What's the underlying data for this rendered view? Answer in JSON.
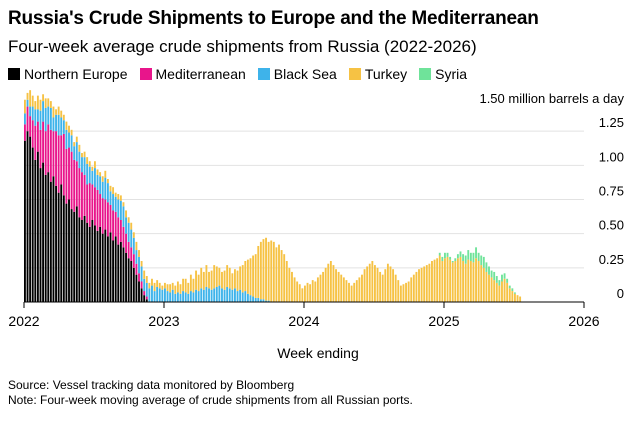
{
  "title": "Russia's Crude Shipments to Europe and the Mediterranean",
  "subtitle": "Four-week average crude shipments from Russia (2022-2026)",
  "source": "Source: Vessel tracking data monitored by Bloomberg",
  "note": "Note: Four-week moving average of crude shipments from all Russian ports.",
  "colors": {
    "Northern Europe": "#000000",
    "Mediterranean": "#e8158b",
    "Black Sea": "#3eb3ea",
    "Turkey": "#f6c244",
    "Syria": "#6fe39a"
  },
  "chart_data": {
    "type": "bar",
    "stacked": true,
    "xlabel": "Week ending",
    "ylabel": "",
    "y_unit_label": "1.50 million barrels a day",
    "ylim": [
      0,
      1.5
    ],
    "yticks": [
      "0",
      "0.25",
      "0.50",
      "0.75",
      "1.00",
      "1.25"
    ],
    "xticks": [
      "2022",
      "2023",
      "2024",
      "2025",
      "2026"
    ],
    "x_start": 2022.0,
    "x_end": 2026.0,
    "categories_note": "weekly periods starting 2022-01, 208 weeks",
    "series": [
      {
        "name": "Northern Europe",
        "values": [
          1.18,
          1.25,
          1.21,
          1.13,
          1.04,
          1.1,
          0.98,
          1.02,
          0.93,
          0.95,
          0.88,
          0.92,
          0.85,
          0.8,
          0.86,
          0.78,
          0.72,
          0.75,
          0.68,
          0.66,
          0.7,
          0.62,
          0.6,
          0.63,
          0.58,
          0.55,
          0.6,
          0.56,
          0.52,
          0.55,
          0.5,
          0.53,
          0.48,
          0.51,
          0.45,
          0.48,
          0.42,
          0.44,
          0.4,
          0.36,
          0.32,
          0.3,
          0.25,
          0.2,
          0.15,
          0.1,
          0.05,
          0.02,
          0,
          0,
          0,
          0,
          0,
          0,
          0,
          0,
          0,
          0,
          0,
          0,
          0,
          0,
          0,
          0,
          0,
          0,
          0,
          0,
          0,
          0,
          0,
          0,
          0,
          0,
          0,
          0,
          0,
          0,
          0,
          0,
          0,
          0,
          0,
          0,
          0,
          0,
          0,
          0,
          0,
          0,
          0,
          0,
          0,
          0,
          0,
          0,
          0,
          0,
          0,
          0,
          0,
          0,
          0,
          0,
          0,
          0,
          0,
          0,
          0,
          0,
          0,
          0,
          0,
          0,
          0,
          0,
          0,
          0,
          0,
          0,
          0,
          0,
          0,
          0,
          0,
          0,
          0,
          0,
          0,
          0,
          0,
          0,
          0,
          0,
          0,
          0,
          0,
          0,
          0,
          0,
          0,
          0,
          0,
          0,
          0,
          0,
          0,
          0,
          0,
          0,
          0,
          0,
          0,
          0,
          0,
          0,
          0,
          0,
          0,
          0,
          0,
          0,
          0,
          0,
          0,
          0,
          0,
          0,
          0,
          0,
          0,
          0,
          0,
          0,
          0,
          0,
          0,
          0,
          0,
          0,
          0,
          0,
          0,
          0,
          0,
          0,
          0,
          0,
          0,
          0,
          0,
          0,
          0,
          0,
          0,
          0,
          0,
          0,
          0,
          0,
          0,
          0,
          0,
          0,
          0,
          0,
          0,
          0,
          0,
          0,
          0,
          0,
          0,
          0,
          0,
          0
        ]
      },
      {
        "name": "Mediterranean",
        "values": [
          0.12,
          0.18,
          0.15,
          0.2,
          0.25,
          0.22,
          0.28,
          0.3,
          0.32,
          0.35,
          0.38,
          0.33,
          0.4,
          0.42,
          0.36,
          0.45,
          0.4,
          0.38,
          0.42,
          0.38,
          0.33,
          0.36,
          0.35,
          0.3,
          0.28,
          0.32,
          0.26,
          0.28,
          0.3,
          0.24,
          0.26,
          0.22,
          0.25,
          0.2,
          0.22,
          0.18,
          0.2,
          0.16,
          0.15,
          0.14,
          0.12,
          0.1,
          0.1,
          0.08,
          0.06,
          0.05,
          0.03,
          0.02,
          0,
          0,
          0,
          0,
          0,
          0,
          0,
          0,
          0,
          0,
          0,
          0,
          0,
          0,
          0,
          0,
          0,
          0,
          0,
          0,
          0,
          0,
          0,
          0,
          0,
          0,
          0,
          0,
          0,
          0,
          0,
          0,
          0,
          0,
          0,
          0,
          0,
          0,
          0,
          0,
          0,
          0,
          0,
          0,
          0,
          0,
          0,
          0,
          0,
          0,
          0,
          0,
          0,
          0,
          0,
          0,
          0,
          0,
          0,
          0,
          0,
          0,
          0,
          0,
          0,
          0,
          0,
          0,
          0,
          0,
          0,
          0,
          0,
          0,
          0,
          0,
          0,
          0,
          0,
          0,
          0,
          0,
          0,
          0,
          0,
          0,
          0,
          0,
          0,
          0,
          0,
          0,
          0,
          0,
          0,
          0,
          0,
          0,
          0,
          0,
          0,
          0,
          0,
          0,
          0,
          0,
          0,
          0,
          0,
          0,
          0,
          0,
          0,
          0,
          0,
          0,
          0,
          0,
          0,
          0,
          0,
          0,
          0,
          0,
          0,
          0,
          0,
          0,
          0,
          0,
          0,
          0,
          0,
          0,
          0,
          0,
          0,
          0,
          0,
          0,
          0,
          0,
          0,
          0,
          0,
          0,
          0,
          0,
          0,
          0,
          0,
          0,
          0,
          0,
          0,
          0,
          0,
          0,
          0,
          0,
          0,
          0,
          0,
          0,
          0,
          0,
          0,
          0
        ]
      },
      {
        "name": "Black Sea",
        "values": [
          0.08,
          0.05,
          0.07,
          0.1,
          0.12,
          0.09,
          0.14,
          0.15,
          0.17,
          0.13,
          0.16,
          0.1,
          0.12,
          0.15,
          0.13,
          0.1,
          0.14,
          0.11,
          0.12,
          0.1,
          0.14,
          0.12,
          0.11,
          0.13,
          0.15,
          0.12,
          0.1,
          0.14,
          0.11,
          0.13,
          0.12,
          0.16,
          0.14,
          0.1,
          0.12,
          0.11,
          0.13,
          0.14,
          0.15,
          0.12,
          0.14,
          0.13,
          0.12,
          0.1,
          0.12,
          0.11,
          0.09,
          0.1,
          0.1,
          0.12,
          0.08,
          0.11,
          0.1,
          0.09,
          0.1,
          0.08,
          0.07,
          0.09,
          0.06,
          0.07,
          0.06,
          0.08,
          0.07,
          0.06,
          0.08,
          0.07,
          0.09,
          0.08,
          0.1,
          0.09,
          0.11,
          0.1,
          0.09,
          0.1,
          0.11,
          0.12,
          0.1,
          0.09,
          0.11,
          0.1,
          0.09,
          0.1,
          0.08,
          0.09,
          0.07,
          0.08,
          0.06,
          0.05,
          0.04,
          0.03,
          0.03,
          0.02,
          0.02,
          0.01,
          0.01,
          0,
          0,
          0,
          0,
          0,
          0,
          0,
          0,
          0,
          0,
          0,
          0,
          0,
          0,
          0,
          0,
          0,
          0,
          0,
          0,
          0,
          0,
          0,
          0,
          0,
          0,
          0,
          0,
          0,
          0,
          0,
          0,
          0,
          0,
          0,
          0,
          0,
          0,
          0,
          0,
          0,
          0,
          0,
          0,
          0,
          0,
          0,
          0,
          0,
          0,
          0,
          0,
          0,
          0,
          0,
          0,
          0,
          0,
          0,
          0,
          0,
          0,
          0,
          0,
          0,
          0,
          0,
          0,
          0,
          0,
          0,
          0,
          0,
          0,
          0,
          0,
          0,
          0,
          0,
          0,
          0,
          0,
          0,
          0,
          0,
          0,
          0,
          0,
          0,
          0,
          0,
          0,
          0,
          0,
          0,
          0,
          0,
          0,
          0,
          0,
          0,
          0,
          0,
          0,
          0,
          0,
          0,
          0,
          0,
          0,
          0,
          0,
          0,
          0,
          0,
          0,
          0,
          0,
          0,
          0,
          0
        ]
      },
      {
        "name": "Turkey",
        "values": [
          0.1,
          0.05,
          0.12,
          0.08,
          0.06,
          0.1,
          0.08,
          0.05,
          0.07,
          0.06,
          0.05,
          0.08,
          0.04,
          0.06,
          0.05,
          0.04,
          0.06,
          0.05,
          0.04,
          0.03,
          0.04,
          0.05,
          0.03,
          0.04,
          0.05,
          0.04,
          0.03,
          0.05,
          0.04,
          0.03,
          0.04,
          0.05,
          0.03,
          0.04,
          0.05,
          0.03,
          0.04,
          0.04,
          0.03,
          0.05,
          0.04,
          0.05,
          0.04,
          0.06,
          0.05,
          0.04,
          0.06,
          0.05,
          0.04,
          0.05,
          0.06,
          0.05,
          0.04,
          0.03,
          0.04,
          0.05,
          0.06,
          0.05,
          0.06,
          0.08,
          0.07,
          0.09,
          0.1,
          0.08,
          0.12,
          0.1,
          0.14,
          0.12,
          0.15,
          0.13,
          0.16,
          0.12,
          0.14,
          0.17,
          0.15,
          0.13,
          0.12,
          0.14,
          0.16,
          0.15,
          0.12,
          0.14,
          0.15,
          0.17,
          0.2,
          0.22,
          0.25,
          0.27,
          0.3,
          0.32,
          0.38,
          0.42,
          0.44,
          0.46,
          0.43,
          0.45,
          0.44,
          0.4,
          0.42,
          0.38,
          0.35,
          0.3,
          0.25,
          0.22,
          0.18,
          0.15,
          0.13,
          0.1,
          0.12,
          0.14,
          0.13,
          0.16,
          0.15,
          0.18,
          0.2,
          0.22,
          0.25,
          0.28,
          0.3,
          0.27,
          0.24,
          0.22,
          0.2,
          0.18,
          0.16,
          0.14,
          0.12,
          0.14,
          0.16,
          0.18,
          0.2,
          0.24,
          0.26,
          0.28,
          0.3,
          0.27,
          0.25,
          0.22,
          0.2,
          0.24,
          0.28,
          0.26,
          0.24,
          0.2,
          0.16,
          0.12,
          0.13,
          0.14,
          0.15,
          0.18,
          0.2,
          0.22,
          0.24,
          0.25,
          0.26,
          0.27,
          0.28,
          0.3,
          0.31,
          0.32,
          0.34,
          0.3,
          0.32,
          0.33,
          0.31,
          0.29,
          0.3,
          0.32,
          0.33,
          0.3,
          0.28,
          0.31,
          0.3,
          0.29,
          0.32,
          0.3,
          0.27,
          0.25,
          0.22,
          0.2,
          0.18,
          0.16,
          0.14,
          0.12,
          0.15,
          0.17,
          0.14,
          0.1,
          0.08,
          0.06,
          0.05,
          0.04
        ]
      },
      {
        "name": "Syria",
        "values": [
          0,
          0,
          0,
          0,
          0,
          0,
          0,
          0,
          0,
          0,
          0,
          0,
          0,
          0,
          0,
          0,
          0,
          0,
          0,
          0,
          0,
          0,
          0,
          0,
          0,
          0,
          0,
          0,
          0,
          0,
          0,
          0,
          0,
          0,
          0,
          0,
          0,
          0,
          0,
          0,
          0,
          0,
          0,
          0,
          0,
          0,
          0,
          0,
          0,
          0,
          0,
          0,
          0,
          0,
          0,
          0,
          0,
          0,
          0,
          0,
          0,
          0,
          0,
          0,
          0,
          0,
          0,
          0,
          0,
          0,
          0,
          0,
          0,
          0,
          0,
          0,
          0,
          0,
          0,
          0,
          0,
          0,
          0,
          0,
          0,
          0,
          0,
          0,
          0,
          0,
          0,
          0,
          0,
          0,
          0,
          0,
          0,
          0,
          0,
          0,
          0,
          0,
          0,
          0,
          0,
          0,
          0,
          0,
          0,
          0,
          0,
          0,
          0,
          0,
          0,
          0,
          0,
          0,
          0,
          0,
          0,
          0,
          0,
          0,
          0,
          0,
          0,
          0,
          0,
          0,
          0,
          0,
          0,
          0,
          0,
          0,
          0,
          0,
          0,
          0,
          0,
          0,
          0,
          0,
          0,
          0,
          0,
          0,
          0,
          0,
          0,
          0,
          0,
          0,
          0,
          0,
          0,
          0,
          0,
          0,
          0.02,
          0.03,
          0.04,
          0.03,
          0.02,
          0.01,
          0.02,
          0.03,
          0.04,
          0.05,
          0.06,
          0.07,
          0.06,
          0.07,
          0.08,
          0.06,
          0.07,
          0.08,
          0.07,
          0.06,
          0.05,
          0.06,
          0.05,
          0.04,
          0.05,
          0.04,
          0.03,
          0.02,
          0.02,
          0.01,
          0,
          0,
          0,
          0,
          0,
          0,
          0,
          0,
          0,
          0,
          0,
          0,
          0,
          0,
          0,
          0,
          0,
          0
        ]
      }
    ]
  }
}
